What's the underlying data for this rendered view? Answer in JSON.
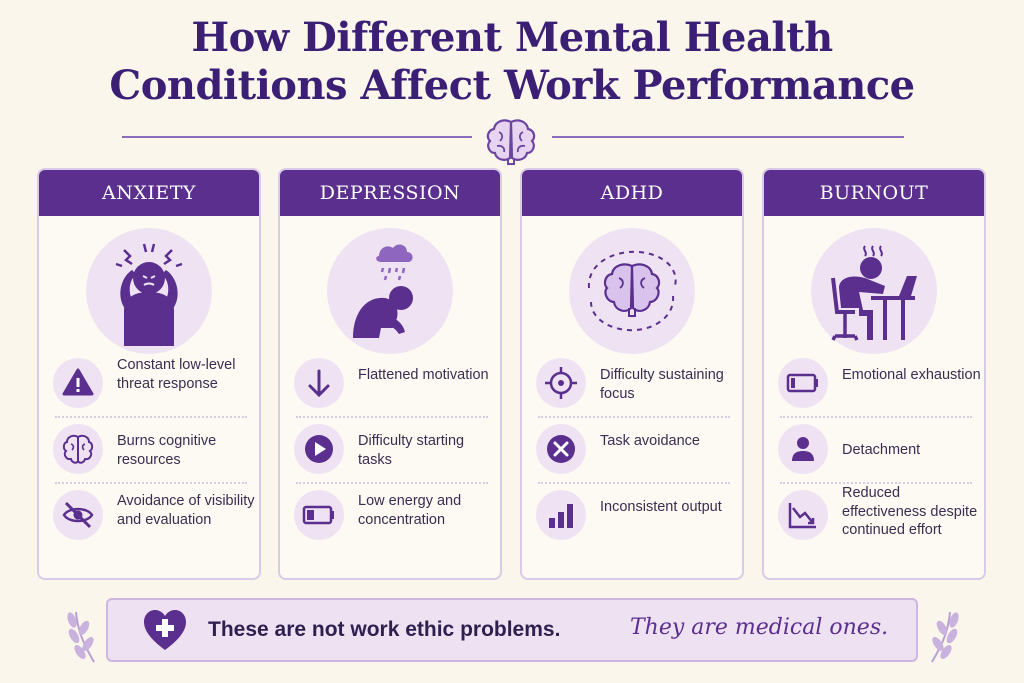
{
  "title": {
    "line1": "How Different Mental Health",
    "line2": "Conditions Affect Work Performance"
  },
  "icons": {
    "divider": "brain-icon",
    "banner": "heart-medical-cross-icon",
    "sprigs": "laurel-sprig-icon"
  },
  "colors": {
    "primary": "#5b2f8e",
    "title": "#3b1f74",
    "icon_bg": "#efe3f3",
    "background": "#fbf6ec"
  },
  "cards": [
    {
      "header": "ANXIETY",
      "hero_icon": "stressed-person-holding-head-icon",
      "items": [
        {
          "icon": "warning-triangle-icon",
          "text": "Constant low-level threat response"
        },
        {
          "icon": "brain-icon",
          "text": "Burns cognitive resources"
        },
        {
          "icon": "eye-slash-icon",
          "text": "Avoidance of visibility and evaluation"
        }
      ]
    },
    {
      "header": "DEPRESSION",
      "hero_icon": "slumped-person-rain-cloud-icon",
      "items": [
        {
          "icon": "arrow-down-icon",
          "text": "Flattened motivation"
        },
        {
          "icon": "play-button-icon",
          "text": "Difficulty starting tasks"
        },
        {
          "icon": "low-battery-icon",
          "text": "Low energy and concentration"
        }
      ]
    },
    {
      "header": "ADHD",
      "hero_icon": "scattered-brain-icon",
      "items": [
        {
          "icon": "crosshair-icon",
          "text": "Difficulty sustaining focus"
        },
        {
          "icon": "x-circle-icon",
          "text": "Task avoidance"
        },
        {
          "icon": "bar-chart-icon",
          "text": "Inconsistent output"
        }
      ]
    },
    {
      "header": "BURNOUT",
      "hero_icon": "exhausted-person-at-desk-icon",
      "items": [
        {
          "icon": "empty-battery-icon",
          "text": "Emotional exhaustion"
        },
        {
          "icon": "person-icon",
          "text": "Detachment"
        },
        {
          "icon": "declining-chart-icon",
          "text": "Reduced effectiveness despite continued effort"
        }
      ]
    }
  ],
  "banner": {
    "main": "These are not work ethic problems.",
    "script": "They are medical ones."
  }
}
